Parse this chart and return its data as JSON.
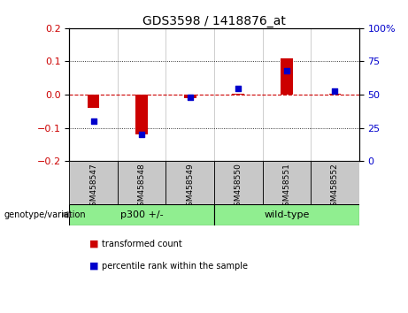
{
  "title": "GDS3598 / 1418876_at",
  "samples": [
    "GSM458547",
    "GSM458548",
    "GSM458549",
    "GSM458550",
    "GSM458551",
    "GSM458552"
  ],
  "red_values": [
    -0.04,
    -0.12,
    -0.01,
    0.002,
    0.11,
    0.002
  ],
  "blue_values_pct": [
    30,
    20,
    48,
    55,
    68,
    53
  ],
  "groups": [
    {
      "label": "p300 +/-",
      "start": 0,
      "end": 2,
      "color": "#90EE90"
    },
    {
      "label": "wild-type",
      "start": 3,
      "end": 5,
      "color": "#90EE90"
    }
  ],
  "ylim_left": [
    -0.2,
    0.2
  ],
  "ylim_right": [
    0,
    100
  ],
  "yticks_left": [
    -0.2,
    -0.1,
    0.0,
    0.1,
    0.2
  ],
  "yticks_right": [
    0,
    25,
    50,
    75,
    100
  ],
  "bar_color": "#CC0000",
  "dot_color": "#0000CC",
  "background_color": "#FFFFFF",
  "plot_bg": "#FFFFFF",
  "zero_line_color": "#CC0000",
  "legend_items": [
    "transformed count",
    "percentile rank within the sample"
  ],
  "bar_width": 0.25,
  "dot_size": 25,
  "group_label_color": "#AAAAAA",
  "sample_box_color": "#C8C8C8"
}
